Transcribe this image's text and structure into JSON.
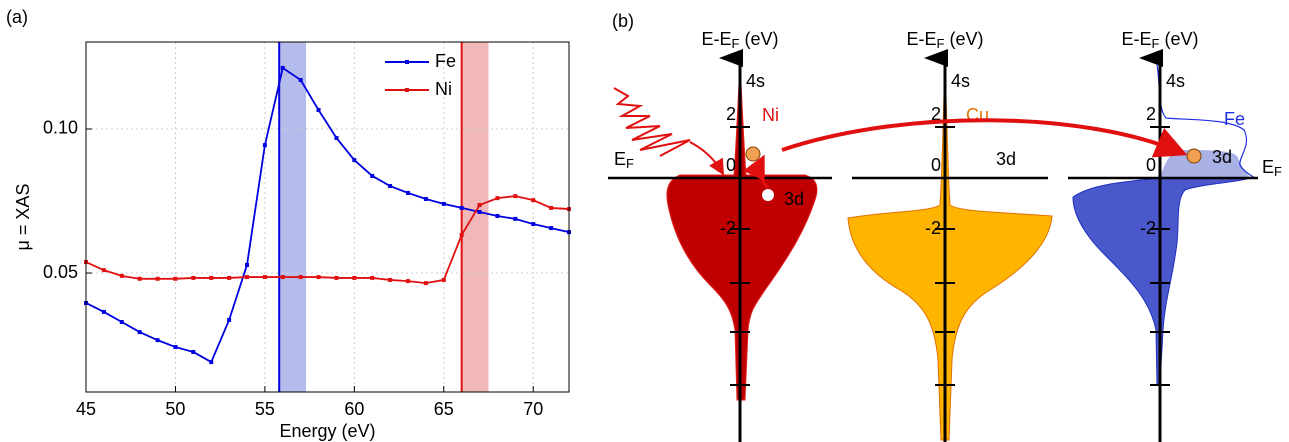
{
  "chart_data": {
    "type": "line",
    "panel_label": "(a)",
    "xlabel": "Energy (eV)",
    "ylabel": "μ = XAS",
    "x": [
      45,
      46,
      47,
      48,
      49,
      50,
      51,
      52,
      53,
      54,
      55,
      56,
      57,
      58,
      59,
      60,
      61,
      62,
      63,
      64,
      65,
      66,
      67,
      68,
      69,
      70,
      71,
      72
    ],
    "series": [
      {
        "name": "Fe",
        "color": "#0000e0",
        "values": [
          0.0396,
          0.0365,
          0.033,
          0.0295,
          0.0267,
          0.0243,
          0.0226,
          0.0191,
          0.0337,
          0.0528,
          0.0944,
          0.1212,
          0.117,
          0.1066,
          0.0969,
          0.0892,
          0.0837,
          0.0802,
          0.0778,
          0.0757,
          0.074,
          0.0726,
          0.0712,
          0.0698,
          0.0688,
          0.067,
          0.0656,
          0.0642
        ]
      },
      {
        "name": "Ni",
        "color": "#e01010",
        "values": [
          0.0538,
          0.051,
          0.049,
          0.048,
          0.048,
          0.048,
          0.0483,
          0.0483,
          0.0483,
          0.0486,
          0.0486,
          0.0486,
          0.0486,
          0.0486,
          0.0483,
          0.0483,
          0.0483,
          0.0476,
          0.0472,
          0.0465,
          0.0476,
          0.0632,
          0.0736,
          0.076,
          0.0767,
          0.0753,
          0.0726,
          0.0722
        ]
      }
    ],
    "highlights": [
      {
        "x": 55.8,
        "band": [
          55.8,
          57.3
        ],
        "color": "#0000e0",
        "band_color": "#b4bcec"
      },
      {
        "x": 66,
        "band": [
          66,
          67.5
        ],
        "color": "#e01010",
        "band_color": "#f0b8b8"
      }
    ],
    "xlim": [
      45,
      72
    ],
    "xticks": [
      45,
      50,
      55,
      60,
      65,
      70
    ],
    "ylim": [
      0.0087,
      0.1302
    ],
    "yticks": [
      0.05,
      {
        "value": 0.1,
        "label": "0.10"
      }
    ],
    "grid": true,
    "legend": "upper right"
  },
  "panel_b": {
    "label": "(b)",
    "axis_label": {
      "main": "E-E",
      "sub": "F",
      "unit": " (eV)"
    },
    "fermi_label": {
      "main": "E",
      "sub": "F"
    },
    "orbital_s": "4s",
    "orbital_d": "3d",
    "energy_ticks": [
      2,
      0,
      -2
    ],
    "elements": [
      "Ni",
      "Cu",
      "Fe"
    ]
  }
}
